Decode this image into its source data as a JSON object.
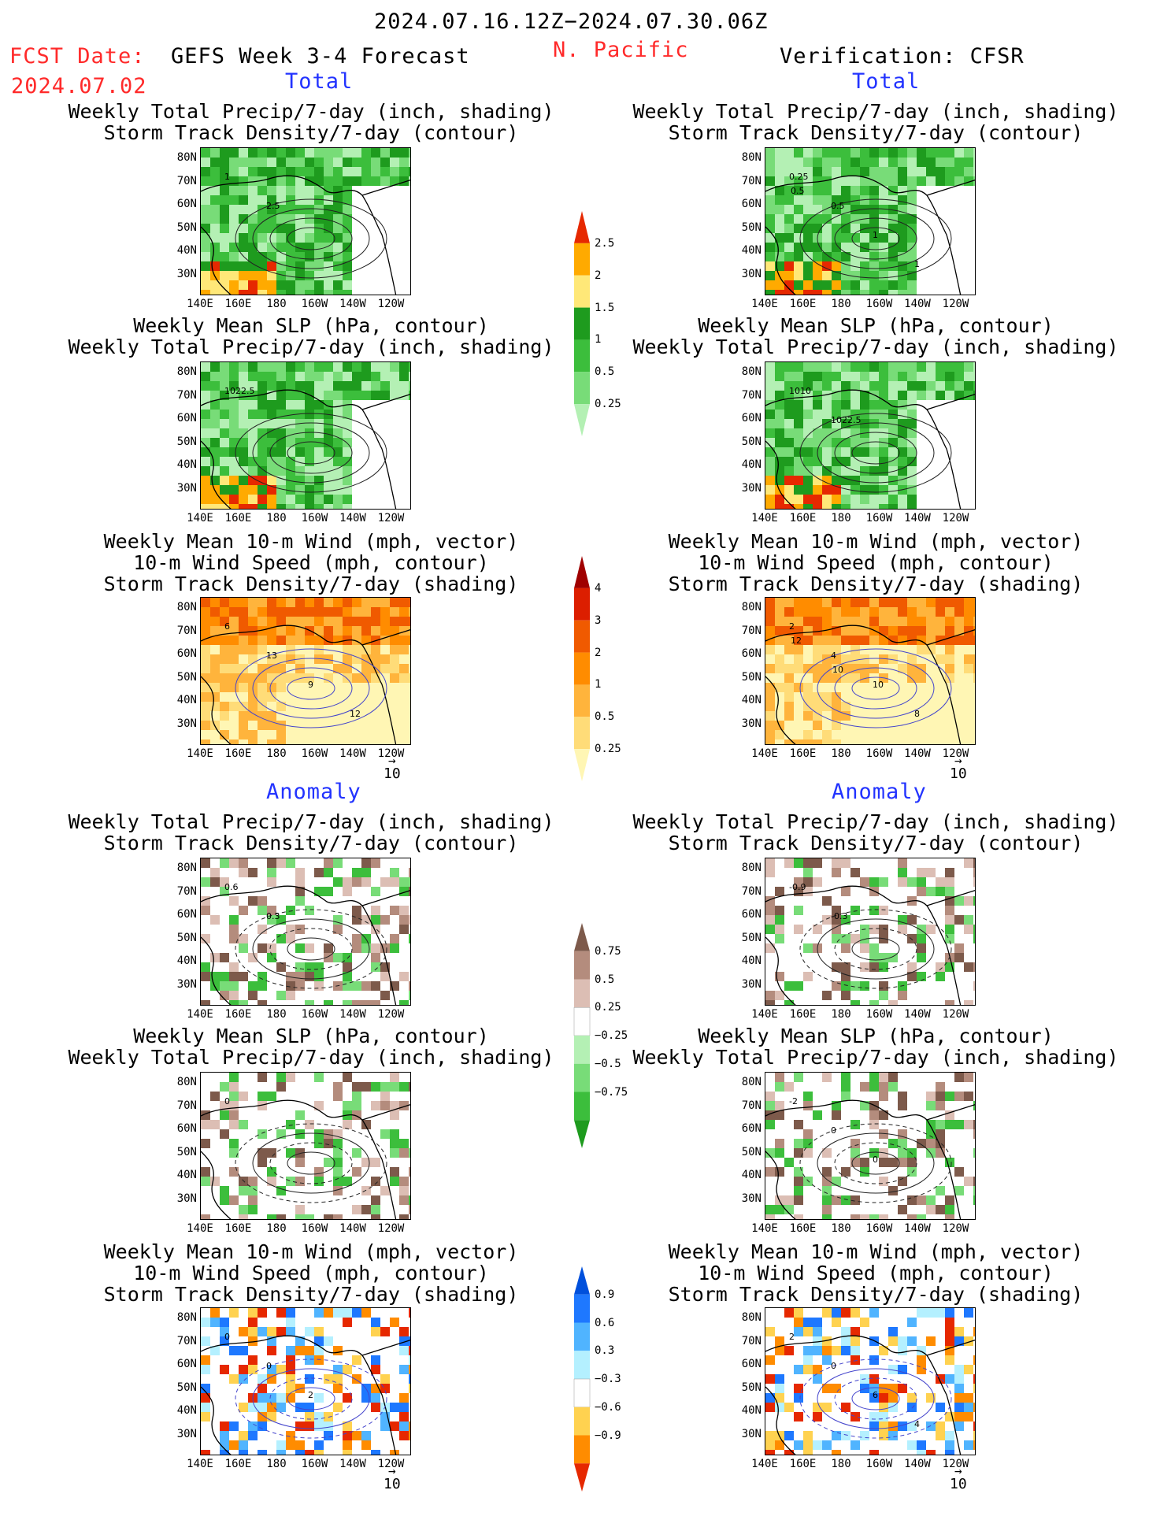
{
  "header": {
    "date_range": "2024.07.16.12Z−2024.07.30.06Z",
    "fcst_label": "FCST Date:",
    "fcst_date": "2024.07.02",
    "model": "GEFS Week 3-4 Forecast",
    "region": "N. Pacific",
    "verification": "Verification: CFSR"
  },
  "sections": {
    "total": "Total",
    "anomaly": "Anomaly"
  },
  "titles": {
    "precip_storm": [
      "Weekly Total Precip/7-day (inch, shading)",
      "Storm Track Density/7-day (contour)"
    ],
    "slp_precip": [
      "Weekly Mean SLP (hPa, contour)",
      "Weekly Total Precip/7-day (inch, shading)"
    ],
    "wind": [
      "Weekly Mean 10-m Wind (mph, vector)",
      "10-m Wind Speed (mph, contour)",
      "Storm Track Density/7-day (shading)"
    ]
  },
  "axes": {
    "lat_ticks": [
      "80N",
      "70N",
      "60N",
      "50N",
      "40N",
      "30N"
    ],
    "lon_ticks": [
      "140E",
      "160E",
      "180",
      "160W",
      "140W",
      "120W"
    ]
  },
  "vector_ref": "10",
  "map_annotations": {
    "fcst_total_precip": [
      "1",
      "2.5"
    ],
    "obs_total_precip": [
      "0.25",
      "0.5",
      "1",
      "1",
      "0.5"
    ],
    "fcst_total_slp": [
      "1022.5"
    ],
    "obs_total_slp": [
      "1010",
      "1022.5"
    ],
    "fcst_total_wind": [
      "6",
      "13",
      "9",
      "12"
    ],
    "obs_total_wind": [
      "2",
      "4",
      "10",
      "8",
      "12",
      "10"
    ],
    "fcst_anom_precip": [
      "0.6",
      "0.3"
    ],
    "obs_anom_precip": [
      "-0.9",
      "-0.3"
    ],
    "fcst_anom_slp": [
      "0"
    ],
    "obs_anom_slp": [
      "-2",
      "0",
      "0"
    ],
    "fcst_anom_wind": [
      "0",
      "0",
      "2"
    ],
    "obs_anom_wind": [
      "2",
      "0",
      "6",
      "4"
    ]
  },
  "chart_data": [
    {
      "type": "heatmap",
      "name_in_image": "colorbar_total_precip",
      "levels": [
        "0.25",
        "0.5",
        "1",
        "1.5",
        "2",
        "2.5"
      ],
      "colors": [
        "#b4f0b4",
        "#78dc78",
        "#3cbe3c",
        "#1e9b1e",
        "#ffe878",
        "#ffaa00",
        "#e62800"
      ]
    },
    {
      "type": "heatmap",
      "name_in_image": "colorbar_total_storm",
      "levels": [
        "0.25",
        "0.5",
        "1",
        "2",
        "3",
        "4"
      ],
      "colors": [
        "#fff6b4",
        "#ffdc78",
        "#ffb43c",
        "#ff8c00",
        "#f05a00",
        "#dc1e00",
        "#a00000"
      ]
    },
    {
      "type": "heatmap",
      "name_in_image": "colorbar_anom_precip",
      "levels": [
        "0.75",
        "0.5",
        "0.25",
        "−0.25",
        "−0.5",
        "−0.75"
      ],
      "colors": [
        "#1e9b1e",
        "#3cbe3c",
        "#78dc78",
        "#b4f0b4",
        "#ffffff",
        "#dcbeb4",
        "#b48c7d",
        "#7d5a4b"
      ]
    },
    {
      "type": "heatmap",
      "name_in_image": "colorbar_anom_storm",
      "levels": [
        "0.9",
        "0.6",
        "0.3",
        "−0.3",
        "−0.6",
        "−0.9"
      ],
      "colors": [
        "#e62800",
        "#ff8c00",
        "#ffd250",
        "#ffffff",
        "#b4f0ff",
        "#50b4ff",
        "#1e78ff",
        "#0050dc"
      ]
    }
  ]
}
